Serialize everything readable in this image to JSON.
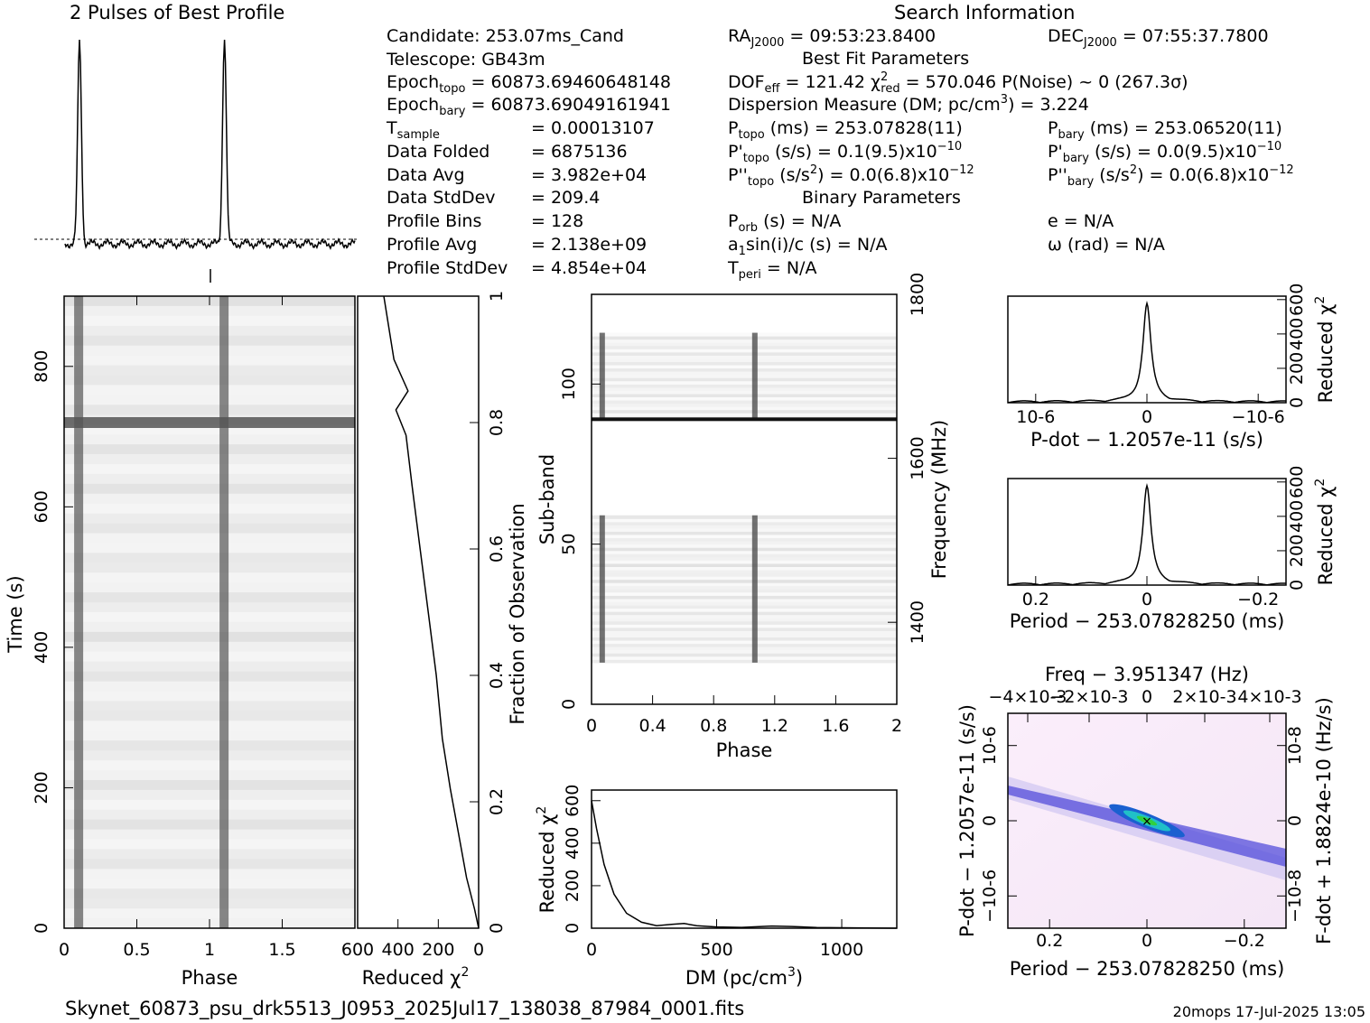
{
  "title_profile": "2 Pulses of Best Profile",
  "title_search": "Search Information",
  "info": {
    "candidate": "Candidate:  253.07ms_Cand",
    "telescope": "Telescope:  GB43m",
    "epoch_topo": "Epochtopo = 60873.69460648148",
    "epoch_bary": "Epochbary = 60873.69049161941",
    "t_sample": "Tsample       =  0.00013107",
    "data_folded": "Data Folded    =  6875136",
    "data_avg": "Data Avg       =  3.982e+04",
    "data_stddev": "Data StdDev    =  209.4",
    "profile_bins": "Profile Bins   =  128",
    "profile_avg": "Profile Avg    =  2.138e+09",
    "profile_stddev": "Profile StdDev =  4.854e+04",
    "ra": "RAJ2000 = 09:53:23.8400",
    "dec": "DECJ2000 = 07:55:37.7800",
    "best_fit_header": "Best Fit Parameters",
    "dof": "DOFeff = 121.42   χ2red = 570.046   P(Noise) ~ 0    (267.3σ)",
    "dm_line": "Dispersion Measure (DM; pc/cm3) = 3.224",
    "p_topo": "Ptopo (ms) =  253.07828(11)",
    "p_bary": "Pbary (ms) =  253.06520(11)",
    "pd_topo": "P'topo (s/s) =  0.1(9.5)x10-10",
    "pd_bary": "P'bary (s/s) = 0.0(9.5)x10-10",
    "pdd_topo": "P''topo (s/s2) = 0.0(6.8)x10-12",
    "pdd_bary": "P''bary (s/s2) = 0.0(6.8)x10-12",
    "binary_header": "Binary Parameters",
    "p_orb": "Porb (s) = N/A",
    "a1sini": "a1sin(i)/c (s) = N/A",
    "t_peri": "Tperi = N/A",
    "e": "e = N/A",
    "omega": "ω (rad) = N/A"
  },
  "footer": {
    "filename": "Skynet_60873_psu_drk5513_J0953_2025Jul17_138038_87984_0001.fits",
    "stamp": "20mops  17-Jul-2025 13:05"
  },
  "chart_data": [
    {
      "id": "profile",
      "type": "line",
      "title": "2 Pulses of Best Profile",
      "xlabel": "",
      "ylabel": "",
      "x_range": [
        0,
        2
      ],
      "peak_phases": [
        0.1,
        1.1
      ],
      "peak_height_rel": 1.0,
      "baseline_rel": 0.0
    },
    {
      "id": "time_phase",
      "type": "heatmap",
      "xlabel": "Phase",
      "ylabel": "Time (s)",
      "xlim": [
        0,
        2
      ],
      "ylim": [
        0,
        900
      ],
      "xticks": [
        "0",
        "0.5",
        "1",
        "1.5"
      ],
      "yticks": [
        "0",
        "200",
        "400",
        "600",
        "800"
      ],
      "pulse_phases": [
        0.1,
        1.1
      ],
      "bright_row_time_s": 720
    },
    {
      "id": "chi2_time",
      "type": "line",
      "xlabel": "Reduced χ2",
      "ylabel": "Fraction of Observation",
      "xlim": [
        600,
        0
      ],
      "ylim": [
        0,
        1
      ],
      "xticks": [
        "600",
        "400",
        "200",
        "0"
      ],
      "yticks": [
        "0",
        "0.2",
        "0.4",
        "0.6",
        "0.8",
        "1"
      ],
      "points": [
        [
          0,
          0
        ],
        [
          20,
          0.03
        ],
        [
          60,
          0.08
        ],
        [
          100,
          0.15
        ],
        [
          140,
          0.22
        ],
        [
          180,
          0.3
        ],
        [
          210,
          0.4
        ],
        [
          250,
          0.5
        ],
        [
          290,
          0.6
        ],
        [
          330,
          0.7
        ],
        [
          360,
          0.78
        ],
        [
          410,
          0.82
        ],
        [
          350,
          0.85
        ],
        [
          420,
          0.9
        ],
        [
          470,
          1.0
        ]
      ]
    },
    {
      "id": "subband_phase",
      "type": "heatmap",
      "xlabel": "Phase",
      "ylabel": "Sub-band",
      "y2label": "Frequency (MHz)",
      "xlim": [
        0,
        2
      ],
      "ylim": [
        0,
        128
      ],
      "xticks": [
        "0",
        "0.4",
        "0.8",
        "1.2",
        "1.6",
        "2"
      ],
      "yticks": [
        "0",
        "50",
        "100"
      ],
      "y2ticks": [
        "1400",
        "1600",
        "1800"
      ],
      "filled_bands": [
        [
          13,
          59
        ],
        [
          89,
          116
        ]
      ],
      "pulse_phases": [
        0.07,
        1.07
      ]
    },
    {
      "id": "dm_chi2",
      "type": "line",
      "xlabel": "DM (pc/cm3)",
      "ylabel": "Reduced χ2",
      "xlim": [
        0,
        1220
      ],
      "ylim": [
        0,
        650
      ],
      "xticks": [
        "0",
        "500",
        "1000"
      ],
      "yticks": [
        "0",
        "200",
        "400",
        "600"
      ],
      "points": [
        [
          0,
          600
        ],
        [
          20,
          470
        ],
        [
          50,
          300
        ],
        [
          90,
          160
        ],
        [
          140,
          70
        ],
        [
          200,
          28
        ],
        [
          260,
          12
        ],
        [
          320,
          18
        ],
        [
          370,
          22
        ],
        [
          420,
          12
        ],
        [
          500,
          6
        ],
        [
          600,
          4
        ],
        [
          720,
          10
        ],
        [
          800,
          8
        ],
        [
          900,
          3
        ],
        [
          1000,
          2
        ],
        [
          1100,
          1
        ],
        [
          1220,
          0
        ]
      ]
    },
    {
      "id": "pdot_chi2",
      "type": "line",
      "xlabel": "P-dot − 1.2057e-11 (s/s)",
      "ylabel": "Reduced χ2",
      "xlim": [
        -1.4e-06,
        1.4e-06
      ],
      "ylim": [
        0,
        620
      ],
      "xticks": [
        "10-6",
        "0",
        "−10-6"
      ],
      "yticks": [
        "0",
        "200",
        "400",
        "600"
      ],
      "peak": 570
    },
    {
      "id": "period_chi2",
      "type": "line",
      "xlabel": "Period − 253.07828250 (ms)",
      "ylabel": "Reduced χ2",
      "xlim": [
        0.28,
        -0.28
      ],
      "ylim": [
        0,
        620
      ],
      "xticks": [
        "0.2",
        "0",
        "−0.2"
      ],
      "yticks": [
        "0",
        "200",
        "400",
        "600"
      ],
      "peak": 570
    },
    {
      "id": "p_pdot_plane",
      "type": "heatmap",
      "title": "Freq − 3.951347 (Hz)",
      "xlabel": "Period − 253.07828250 (ms)",
      "ylabel": "P-dot − 1.2057e-11 (s/s)",
      "y2label": "F-dot + 1.8824e-10 (Hz/s)",
      "xticks": [
        "0.2",
        "0",
        "−0.2"
      ],
      "x2ticks": [
        "−4×10-3",
        "−2×10-3",
        "0",
        "2×10-3",
        "4×10-3"
      ],
      "yticks": [
        "10-6",
        "0",
        "−10-6"
      ],
      "y2ticks": [
        "10-8",
        "0",
        "−10-8"
      ]
    }
  ]
}
